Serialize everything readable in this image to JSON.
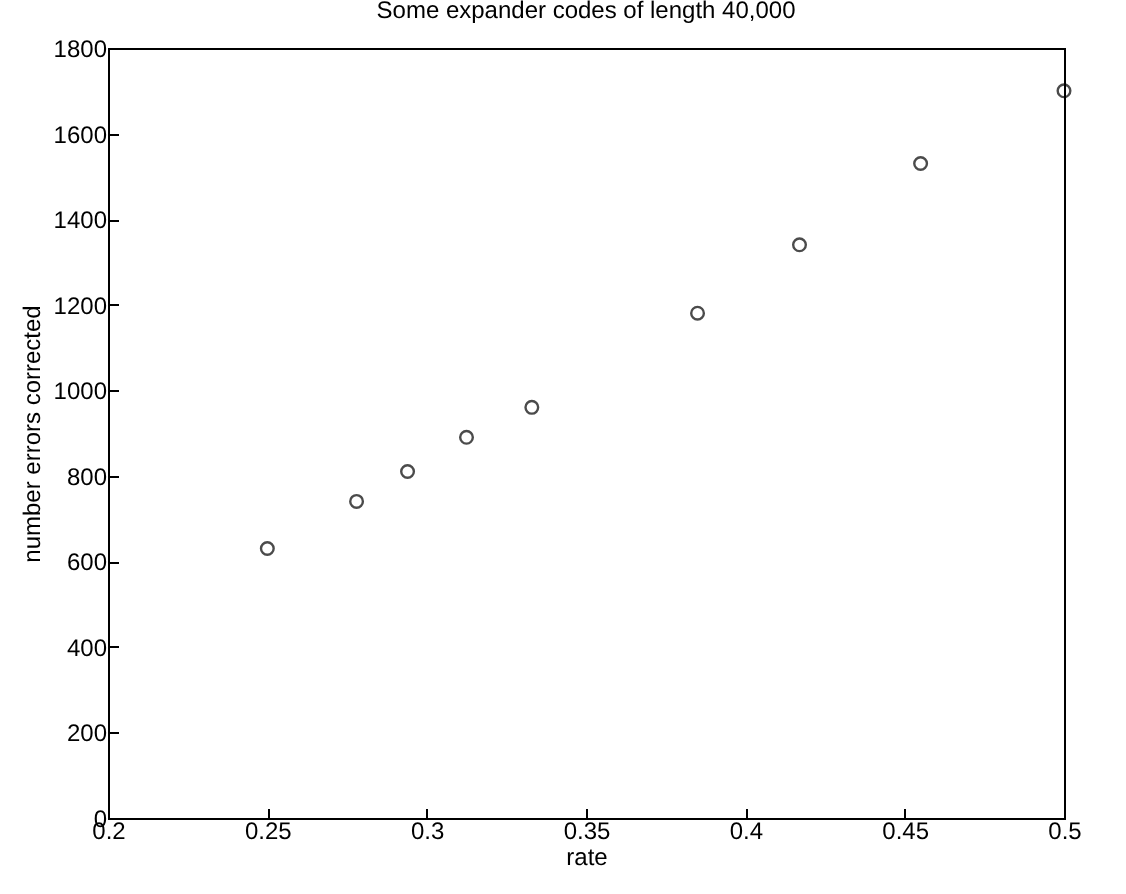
{
  "chart_data": {
    "type": "scatter",
    "title": "Some expander codes of length 40,000",
    "xlabel": "rate",
    "ylabel": "number errors corrected",
    "x": [
      0.25,
      0.278,
      0.294,
      0.3125,
      0.333,
      0.385,
      0.417,
      0.455,
      0.5
    ],
    "series": [
      {
        "color": "#000000",
        "values": [
          630,
          740,
          810,
          890,
          960,
          1180,
          1340,
          1530,
          1700
        ]
      }
    ],
    "xlim": [
      0.2,
      0.5
    ],
    "xticks": [
      {
        "value": 0.2,
        "label": "0.2"
      },
      0.25,
      {
        "value": 0.3,
        "label": "0.3"
      },
      0.35,
      {
        "value": 0.4,
        "label": "0.4"
      },
      0.45,
      {
        "value": 0.5,
        "label": "0.5"
      }
    ],
    "ylim": [
      0,
      1800
    ],
    "yticks": [
      0,
      200,
      400,
      600,
      800,
      1000,
      1200,
      1400,
      1600,
      1800
    ],
    "grid": false,
    "legend": false,
    "marker": "circle"
  }
}
